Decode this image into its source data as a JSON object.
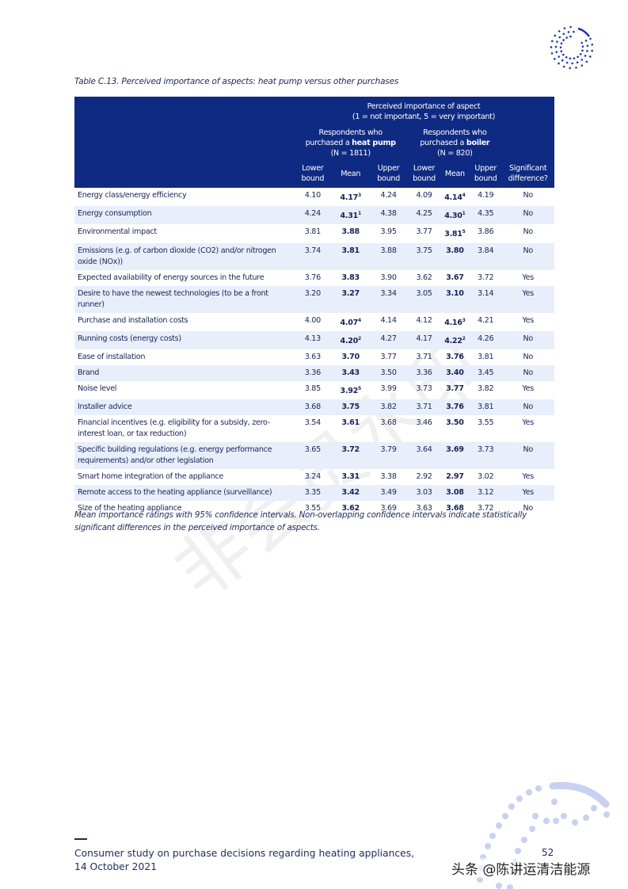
{
  "caption": "Table C.13. Perceived importance of aspects: heat pump versus other purchases",
  "header": {
    "group_title_1": "Perceived importance of aspect",
    "group_title_2": "(1 = not important, 5 = very important)",
    "hp_line1": "Respondents who",
    "hp_line2_pre": "purchased a ",
    "hp_line2_bold": "heat pump",
    "hp_line3": "(N = 1811)",
    "b_line1": "Respondents who",
    "b_line2_pre": "purchased a ",
    "b_line2_bold": "boiler",
    "b_line3": "(N = 820)",
    "lower": [
      "Lower",
      "bound"
    ],
    "mean": "Mean",
    "upper": [
      "Upper",
      "bound"
    ],
    "sig": [
      "Significant",
      "difference?"
    ]
  },
  "rows": [
    {
      "aspect": "Energy class/energy efficiency",
      "hp_lo": "4.10",
      "hp_mean": "4.17",
      "hp_sup": "3",
      "hp_up": "4.24",
      "b_lo": "4.09",
      "b_mean": "4.14",
      "b_sup": "4",
      "b_up": "4.19",
      "sig": "No"
    },
    {
      "aspect": "Energy consumption",
      "hp_lo": "4.24",
      "hp_mean": "4.31",
      "hp_sup": "1",
      "hp_up": "4.38",
      "b_lo": "4.25",
      "b_mean": "4.30",
      "b_sup": "1",
      "b_up": "4.35",
      "sig": "No"
    },
    {
      "aspect": "Environmental impact",
      "hp_lo": "3.81",
      "hp_mean": "3.88",
      "hp_sup": "",
      "hp_up": "3.95",
      "b_lo": "3.77",
      "b_mean": "3.81",
      "b_sup": "5",
      "b_up": "3.86",
      "sig": "No"
    },
    {
      "aspect": "Emissions (e.g. of carbon dioxide (CO2) and/or nitrogen oxide (NOx))",
      "hp_lo": "3.74",
      "hp_mean": "3.81",
      "hp_sup": "",
      "hp_up": "3.88",
      "b_lo": "3.75",
      "b_mean": "3.80",
      "b_sup": "",
      "b_up": "3.84",
      "sig": "No"
    },
    {
      "aspect": "Expected availability of energy sources in the future",
      "hp_lo": "3.76",
      "hp_mean": "3.83",
      "hp_sup": "",
      "hp_up": "3.90",
      "b_lo": "3.62",
      "b_mean": "3.67",
      "b_sup": "",
      "b_up": "3.72",
      "sig": "Yes"
    },
    {
      "aspect": "Desire to have the newest technologies (to be a front runner)",
      "hp_lo": "3.20",
      "hp_mean": "3.27",
      "hp_sup": "",
      "hp_up": "3.34",
      "b_lo": "3.05",
      "b_mean": "3.10",
      "b_sup": "",
      "b_up": "3.14",
      "sig": "Yes"
    },
    {
      "aspect": "Purchase and installation costs",
      "hp_lo": "4.00",
      "hp_mean": "4.07",
      "hp_sup": "4",
      "hp_up": "4.14",
      "b_lo": "4.12",
      "b_mean": "4.16",
      "b_sup": "3",
      "b_up": "4.21",
      "sig": "Yes"
    },
    {
      "aspect": "Running costs (energy costs)",
      "hp_lo": "4.13",
      "hp_mean": "4.20",
      "hp_sup": "2",
      "hp_up": "4.27",
      "b_lo": "4.17",
      "b_mean": "4.22",
      "b_sup": "2",
      "b_up": "4.26",
      "sig": "No"
    },
    {
      "aspect": "Ease of installation",
      "hp_lo": "3.63",
      "hp_mean": "3.70",
      "hp_sup": "",
      "hp_up": "3.77",
      "b_lo": "3.71",
      "b_mean": "3.76",
      "b_sup": "",
      "b_up": "3.81",
      "sig": "No"
    },
    {
      "aspect": "Brand",
      "hp_lo": "3.36",
      "hp_mean": "3.43",
      "hp_sup": "",
      "hp_up": "3.50",
      "b_lo": "3.36",
      "b_mean": "3.40",
      "b_sup": "",
      "b_up": "3.45",
      "sig": "No"
    },
    {
      "aspect": "Noise level",
      "hp_lo": "3.85",
      "hp_mean": "3.92",
      "hp_sup": "5",
      "hp_up": "3.99",
      "b_lo": "3.73",
      "b_mean": "3.77",
      "b_sup": "",
      "b_up": "3.82",
      "sig": "Yes"
    },
    {
      "aspect": "Installer advice",
      "hp_lo": "3.68",
      "hp_mean": "3.75",
      "hp_sup": "",
      "hp_up": "3.82",
      "b_lo": "3.71",
      "b_mean": "3.76",
      "b_sup": "",
      "b_up": "3.81",
      "sig": "No"
    },
    {
      "aspect": "Financial incentives (e.g. eligibility for a subsidy, zero-interest loan, or tax reduction)",
      "hp_lo": "3.54",
      "hp_mean": "3.61",
      "hp_sup": "",
      "hp_up": "3.68",
      "b_lo": "3.46",
      "b_mean": "3.50",
      "b_sup": "",
      "b_up": "3.55",
      "sig": "Yes"
    },
    {
      "aspect": "Specific building regulations (e.g. energy performance requirements) and/or other legislation",
      "hp_lo": "3.65",
      "hp_mean": "3.72",
      "hp_sup": "",
      "hp_up": "3.79",
      "b_lo": "3.64",
      "b_mean": "3.69",
      "b_sup": "",
      "b_up": "3.73",
      "sig": "No"
    },
    {
      "aspect": "Smart home integration of the appliance",
      "hp_lo": "3.24",
      "hp_mean": "3.31",
      "hp_sup": "",
      "hp_up": "3.38",
      "b_lo": "2.92",
      "b_mean": "2.97",
      "b_sup": "",
      "b_up": "3.02",
      "sig": "Yes"
    },
    {
      "aspect": "Remote access to the heating appliance (surveillance)",
      "hp_lo": "3.35",
      "hp_mean": "3.42",
      "hp_sup": "",
      "hp_up": "3.49",
      "b_lo": "3.03",
      "b_mean": "3.08",
      "b_sup": "",
      "b_up": "3.12",
      "sig": "Yes"
    },
    {
      "aspect": "Size of the heating appliance",
      "hp_lo": "3.55",
      "hp_mean": "3.62",
      "hp_sup": "",
      "hp_up": "3.69",
      "b_lo": "3.63",
      "b_mean": "3.68",
      "b_sup": "",
      "b_up": "3.72",
      "sig": "No"
    }
  ],
  "note": "Mean importance ratings with 95% confidence intervals. Non-overlapping confidence intervals indicate statistically significant differences in the perceived importance of aspects.",
  "footer": "Consumer study on purchase decisions regarding heating appliances, 14 October 2021",
  "page_number": "52",
  "credit": "头条 @陈讲运清洁能源",
  "watermark": "非会员水印",
  "colors": {
    "header_bg": "#0f2a82",
    "row_alt": "#e8effb",
    "text": "#1f2a5a"
  }
}
